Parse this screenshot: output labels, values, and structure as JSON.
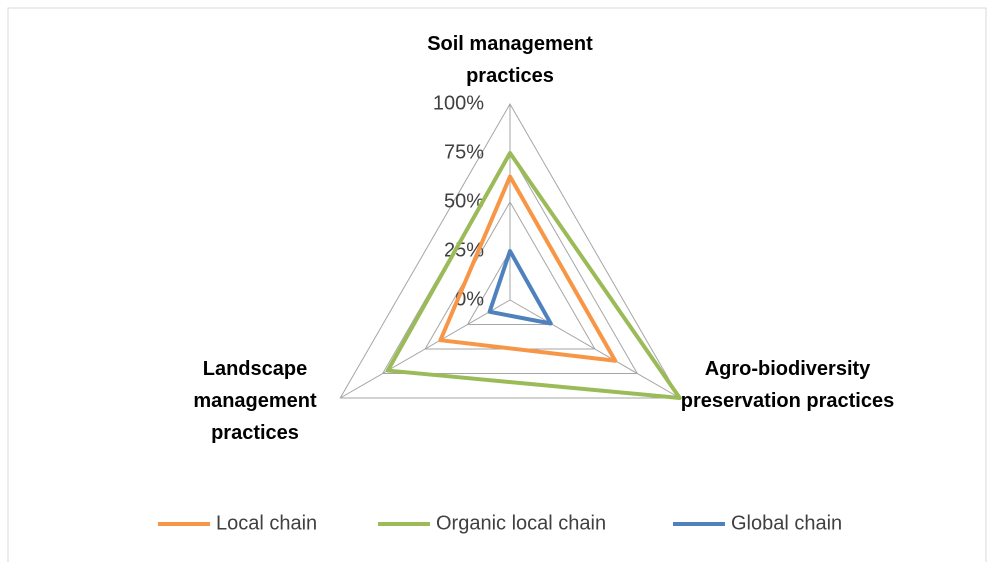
{
  "chart_data": {
    "type": "radar",
    "categories": [
      "Soil management practices",
      "Agro-biodiversity preservation practices",
      "Landscape management practices"
    ],
    "series": [
      {
        "name": "Local chain",
        "color": "#f79646",
        "values": [
          63,
          62,
          41
        ]
      },
      {
        "name": "Organic local chain",
        "color": "#9bbb59",
        "values": [
          75,
          100,
          72
        ]
      },
      {
        "name": "Global chain",
        "color": "#4f81bd",
        "values": [
          25,
          24,
          12
        ]
      }
    ],
    "ylim": [
      0,
      100
    ],
    "yticks": [
      {
        "value": 0,
        "label": "0%"
      },
      {
        "value": 25,
        "label": "25%"
      },
      {
        "value": 50,
        "label": "50%"
      },
      {
        "value": 75,
        "label": "75%"
      },
      {
        "value": 100,
        "label": "100%"
      }
    ],
    "grid": true,
    "legend": "bottom"
  }
}
